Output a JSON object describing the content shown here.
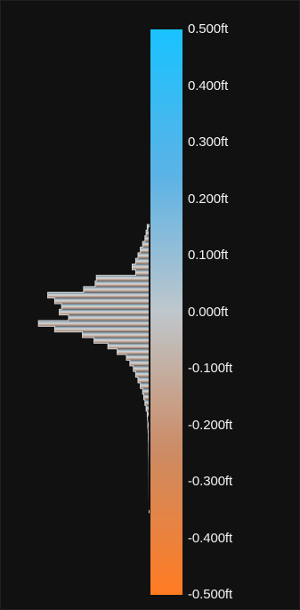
{
  "colorbar": {
    "units": "ft",
    "top_color": "#19c2ff",
    "mid_color": "#bfc7cc",
    "bottom_color": "#ff7b22",
    "ticks": [
      {
        "value": 0.5,
        "label": "0.500ft"
      },
      {
        "value": 0.4,
        "label": "0.400ft"
      },
      {
        "value": 0.3,
        "label": "0.300ft"
      },
      {
        "value": 0.2,
        "label": "0.200ft"
      },
      {
        "value": 0.1,
        "label": "0.100ft"
      },
      {
        "value": 0.0,
        "label": "0.000ft"
      },
      {
        "value": -0.1,
        "label": "-0.100ft"
      },
      {
        "value": -0.2,
        "label": "-0.200ft"
      },
      {
        "value": -0.3,
        "label": "-0.300ft"
      },
      {
        "value": -0.4,
        "label": "-0.400ft"
      },
      {
        "value": -0.5,
        "label": "-0.500ft"
      }
    ]
  },
  "histogram": {
    "bins": [
      {
        "center": 0.15,
        "count": 0.02
      },
      {
        "center": 0.14,
        "count": 0.03
      },
      {
        "center": 0.13,
        "count": 0.04
      },
      {
        "center": 0.12,
        "count": 0.06
      },
      {
        "center": 0.11,
        "count": 0.08
      },
      {
        "center": 0.1,
        "count": 0.1
      },
      {
        "center": 0.09,
        "count": 0.12
      },
      {
        "center": 0.08,
        "count": 0.15
      },
      {
        "center": 0.07,
        "count": 0.12
      },
      {
        "center": 0.06,
        "count": 0.46
      },
      {
        "center": 0.05,
        "count": 0.47
      },
      {
        "center": 0.04,
        "count": 0.57
      },
      {
        "center": 0.03,
        "count": 0.88
      },
      {
        "center": 0.02,
        "count": 0.82
      },
      {
        "center": 0.01,
        "count": 0.76
      },
      {
        "center": 0.0,
        "count": 0.78
      },
      {
        "center": -0.01,
        "count": 0.7
      },
      {
        "center": -0.02,
        "count": 0.96
      },
      {
        "center": -0.03,
        "count": 0.82
      },
      {
        "center": -0.04,
        "count": 0.58
      },
      {
        "center": -0.05,
        "count": 0.48
      },
      {
        "center": -0.06,
        "count": 0.36
      },
      {
        "center": -0.07,
        "count": 0.28
      },
      {
        "center": -0.08,
        "count": 0.2
      },
      {
        "center": -0.09,
        "count": 0.17
      },
      {
        "center": -0.1,
        "count": 0.14
      },
      {
        "center": -0.11,
        "count": 0.12
      },
      {
        "center": -0.12,
        "count": 0.1
      },
      {
        "center": -0.13,
        "count": 0.08
      },
      {
        "center": -0.14,
        "count": 0.06
      },
      {
        "center": -0.15,
        "count": 0.05
      },
      {
        "center": -0.16,
        "count": 0.04
      },
      {
        "center": -0.17,
        "count": 0.03
      },
      {
        "center": -0.18,
        "count": 0.02
      },
      {
        "center": -0.2,
        "count": 0.015
      },
      {
        "center": -0.22,
        "count": 0.01
      },
      {
        "center": -0.24,
        "count": 0.008
      },
      {
        "center": -0.27,
        "count": 0.006
      },
      {
        "center": -0.31,
        "count": 0.005
      },
      {
        "center": -0.35,
        "count": 0.004
      }
    ]
  }
}
